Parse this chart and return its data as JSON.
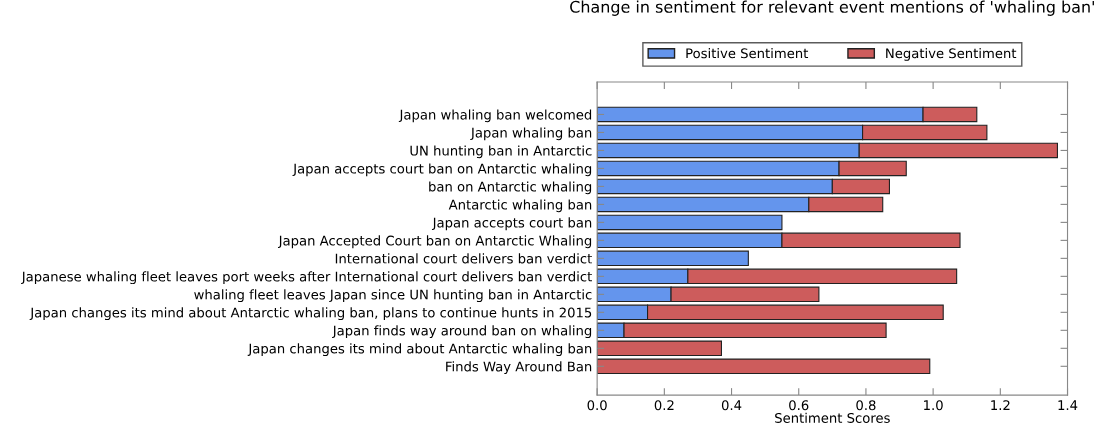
{
  "chart_data": {
    "type": "bar",
    "orientation": "horizontal",
    "stacked": true,
    "title": "Change in sentiment for relevant event mentions of 'whaling ban'",
    "xlabel": "Sentiment Scores",
    "categories": [
      "Japan whaling ban welcomed",
      "Japan whaling ban",
      "UN hunting ban in Antarctic",
      "Japan accepts court ban on Antarctic whaling",
      "ban on Antarctic whaling",
      "Antarctic whaling ban",
      "Japan accepts court ban",
      "Japan Accepted Court ban on Antarctic Whaling",
      "International court delivers ban verdict",
      "Japanese whaling fleet leaves port weeks after International court delivers ban verdict",
      "whaling fleet leaves Japan since UN hunting ban in Antarctic",
      "Japan changes its mind about Antarctic whaling ban, plans to continue hunts in 2015",
      "Japan finds way around ban on whaling",
      "Japan changes its mind about Antarctic whaling ban",
      "Finds Way Around Ban"
    ],
    "series": [
      {
        "name": "Positive Sentiment",
        "color": "#6495ed",
        "values": [
          0.97,
          0.79,
          0.78,
          0.72,
          0.7,
          0.63,
          0.55,
          0.55,
          0.45,
          0.27,
          0.22,
          0.15,
          0.08,
          0,
          0
        ]
      },
      {
        "name": "Negative Sentiment",
        "color": "#cd5c5c",
        "values": [
          0.16,
          0.37,
          0.59,
          0.2,
          0.17,
          0.22,
          0,
          0.53,
          0,
          0.8,
          0.44,
          0.88,
          0.78,
          0.37,
          0.99
        ]
      }
    ],
    "xlim": [
      0.0,
      1.4
    ],
    "xticks": [
      {
        "value": 0,
        "label": "0.0"
      },
      0.2,
      0.4,
      0.6,
      0.8,
      {
        "value": 1,
        "label": "1.0"
      },
      1.2,
      1.4
    ],
    "legend": "top",
    "grid": false
  }
}
